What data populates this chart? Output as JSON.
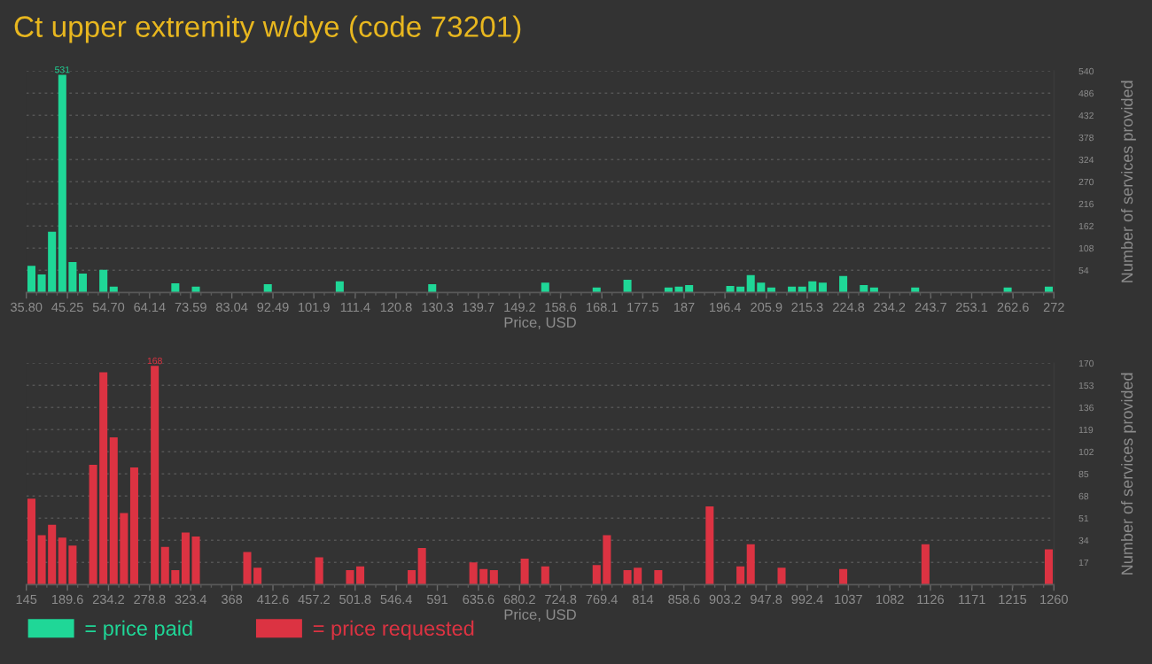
{
  "chart_data": [
    {
      "type": "histogram",
      "title": "Ct upper extremity w/dye (code 73201)",
      "xlabel": "Price, USD",
      "ylabel": "Number of services provided",
      "bins": [
        35.8,
        38.16,
        40.52,
        42.89,
        45.25,
        47.61,
        49.97,
        52.33,
        54.7,
        57.06,
        59.42,
        61.78,
        64.14,
        66.51,
        68.87,
        71.23,
        73.59,
        75.95,
        78.32,
        80.68,
        83.04,
        85.4,
        87.76,
        90.13,
        92.49,
        94.85,
        97.21,
        99.57,
        101.94,
        104.3,
        106.66,
        109.02,
        111.38,
        113.75,
        116.11,
        118.47,
        120.83,
        123.19,
        125.56,
        127.92,
        130.28,
        132.64,
        135.0,
        137.37,
        139.73,
        142.09,
        144.45,
        146.81,
        149.18,
        151.54,
        153.9,
        156.26,
        158.62,
        160.99,
        163.35,
        165.71,
        168.07,
        170.43,
        172.8,
        175.16,
        177.52,
        179.88,
        182.24,
        184.61,
        186.97,
        189.33,
        191.69,
        194.05,
        196.42,
        198.78,
        201.14,
        203.5,
        205.86,
        208.23,
        210.59,
        212.95,
        215.31,
        217.67,
        220.04,
        222.4,
        224.76,
        227.12,
        229.48,
        231.85,
        234.21,
        236.57,
        238.93,
        241.29,
        243.66,
        246.02,
        248.38,
        250.74,
        253.1,
        255.47,
        257.83,
        260.19,
        262.55,
        264.91,
        267.28,
        269.64,
        272
      ],
      "series": [
        {
          "name": "= price paid",
          "color": "#1fd797",
          "values": [
            65,
            44,
            148,
            531,
            74,
            46,
            0,
            55,
            14,
            0,
            0,
            0,
            0,
            0,
            22,
            0,
            14,
            0,
            0,
            0,
            0,
            0,
            0,
            20,
            0,
            0,
            0,
            0,
            0,
            0,
            27,
            0,
            0,
            0,
            0,
            0,
            0,
            0,
            0,
            20,
            0,
            0,
            0,
            0,
            0,
            0,
            0,
            0,
            0,
            0,
            24,
            0,
            0,
            0,
            0,
            12,
            0,
            0,
            31,
            0,
            0,
            0,
            12,
            14,
            18,
            0,
            0,
            0,
            16,
            14,
            42,
            24,
            12,
            0,
            14,
            14,
            27,
            24,
            0,
            40,
            0,
            18,
            12,
            0,
            0,
            0,
            12,
            0,
            0,
            0,
            0,
            0,
            0,
            0,
            0,
            12,
            0,
            0,
            0,
            14
          ],
          "value_labels": [
            null,
            null,
            null,
            "531",
            null,
            null,
            null,
            null,
            null,
            null,
            null,
            null,
            null,
            null,
            null,
            null,
            null,
            null,
            null,
            null,
            null,
            null,
            null,
            null,
            null,
            null,
            null,
            null,
            null,
            null,
            null,
            null,
            null,
            null,
            null,
            null,
            null,
            null,
            null,
            null,
            null,
            null,
            null,
            null,
            null,
            null,
            null,
            null,
            null,
            null,
            null,
            null,
            null,
            null,
            null,
            null,
            null,
            null,
            null,
            null,
            null,
            null,
            null,
            null,
            null,
            null,
            null,
            null,
            null,
            null,
            null,
            null,
            null,
            null,
            null,
            null,
            null,
            null,
            null,
            null,
            null,
            null,
            null,
            null,
            null,
            null,
            null,
            null,
            null,
            null,
            null,
            null,
            null,
            null,
            null,
            null,
            null,
            null,
            null,
            null
          ]
        }
      ],
      "xlim": [
        35.8,
        272
      ],
      "xticks": [
        {
          "value": 35.8,
          "label": "35.80"
        },
        45.25,
        {
          "value": 54.7,
          "label": "54.70"
        },
        64.14,
        73.59,
        83.04,
        92.49,
        101.9,
        111.4,
        120.8,
        130.3,
        139.7,
        149.2,
        158.6,
        168.1,
        177.5,
        187,
        196.4,
        205.9,
        215.3,
        224.8,
        234.2,
        243.7,
        253.1,
        262.6,
        272
      ],
      "ylim": [
        0,
        540
      ],
      "yticks": [
        54,
        108,
        162,
        216,
        270,
        324,
        378,
        432,
        486,
        540
      ],
      "grid": "y",
      "legend": "bottom left"
    },
    {
      "type": "histogram",
      "xlabel": "Price, USD",
      "ylabel": "Number of services provided",
      "bins": [
        145,
        156.15,
        167.3,
        178.45,
        189.6,
        200.75,
        211.9,
        223.05,
        234.2,
        245.35,
        256.5,
        267.65,
        278.8,
        289.95,
        301.1,
        312.25,
        323.4,
        334.55,
        345.7,
        356.85,
        368,
        379.15,
        390.3,
        401.45,
        412.6,
        423.75,
        434.9,
        446.05,
        457.2,
        468.35,
        479.5,
        490.65,
        501.8,
        512.95,
        524.1,
        535.25,
        546.4,
        557.55,
        568.7,
        579.85,
        591,
        602.15,
        613.3,
        624.45,
        635.6,
        646.75,
        657.9,
        669.05,
        680.2,
        691.35,
        702.5,
        713.65,
        724.8,
        735.95,
        747.1,
        758.25,
        769.4,
        780.55,
        791.7,
        802.85,
        814,
        825.15,
        836.3,
        847.45,
        858.6,
        869.75,
        880.9,
        892.05,
        903.2,
        914.35,
        925.5,
        936.65,
        947.8,
        958.95,
        970.1,
        981.25,
        992.4,
        1003.55,
        1014.7,
        1025.85,
        1037,
        1048.15,
        1059.3,
        1070.45,
        1081.6,
        1092.75,
        1103.9,
        1115.05,
        1126.2,
        1137.35,
        1148.5,
        1159.65,
        1170.8,
        1181.95,
        1193.1,
        1204.25,
        1215.4,
        1226.55,
        1237.7,
        1248.85,
        1260
      ],
      "series": [
        {
          "name": "= price requested",
          "color": "#dc3342",
          "values": [
            66,
            38,
            46,
            36,
            30,
            0,
            92,
            163,
            113,
            55,
            90,
            0,
            168,
            29,
            11,
            40,
            37,
            0,
            0,
            0,
            0,
            25,
            13,
            0,
            0,
            0,
            0,
            0,
            21,
            0,
            0,
            11,
            14,
            0,
            0,
            0,
            0,
            11,
            28,
            0,
            0,
            0,
            0,
            17,
            12,
            11,
            0,
            0,
            20,
            0,
            14,
            0,
            0,
            0,
            0,
            15,
            38,
            0,
            11,
            13,
            0,
            11,
            0,
            0,
            0,
            0,
            60,
            0,
            0,
            14,
            31,
            0,
            0,
            13,
            0,
            0,
            0,
            0,
            0,
            12,
            0,
            0,
            0,
            0,
            0,
            0,
            0,
            31,
            0,
            0,
            0,
            0,
            0,
            0,
            0,
            0,
            0,
            0,
            0,
            27
          ],
          "value_labels": [
            null,
            null,
            null,
            null,
            null,
            null,
            null,
            null,
            null,
            null,
            null,
            null,
            "168",
            null,
            null,
            null,
            null,
            null,
            null,
            null,
            null,
            null,
            null,
            null,
            null,
            null,
            null,
            null,
            null,
            null,
            null,
            null,
            null,
            null,
            null,
            null,
            null,
            null,
            null,
            null,
            null,
            null,
            null,
            null,
            null,
            null,
            null,
            null,
            null,
            null,
            null,
            null,
            null,
            null,
            null,
            null,
            null,
            null,
            null,
            null,
            null,
            null,
            null,
            null,
            null,
            null,
            null,
            null,
            null,
            null,
            null,
            null,
            null,
            null,
            null,
            null,
            null,
            null,
            null,
            null,
            null,
            null,
            null,
            null,
            null,
            null,
            null,
            null,
            null,
            null,
            null,
            null,
            null,
            null,
            null,
            null,
            null,
            null,
            null,
            null
          ]
        }
      ],
      "xlim": [
        145,
        1260
      ],
      "xticks": [
        145,
        189.6,
        234.2,
        278.8,
        323.4,
        368,
        412.6,
        457.2,
        501.8,
        546.4,
        591,
        635.6,
        680.2,
        724.8,
        769.4,
        814,
        858.6,
        903.2,
        947.8,
        992.4,
        1037,
        1082,
        1126,
        1171,
        1215,
        1260
      ],
      "ylim": [
        0,
        170
      ],
      "yticks": [
        17,
        34,
        51,
        68,
        85,
        102,
        119,
        136,
        153,
        170
      ],
      "grid": "y",
      "legend": "bottom left"
    }
  ]
}
